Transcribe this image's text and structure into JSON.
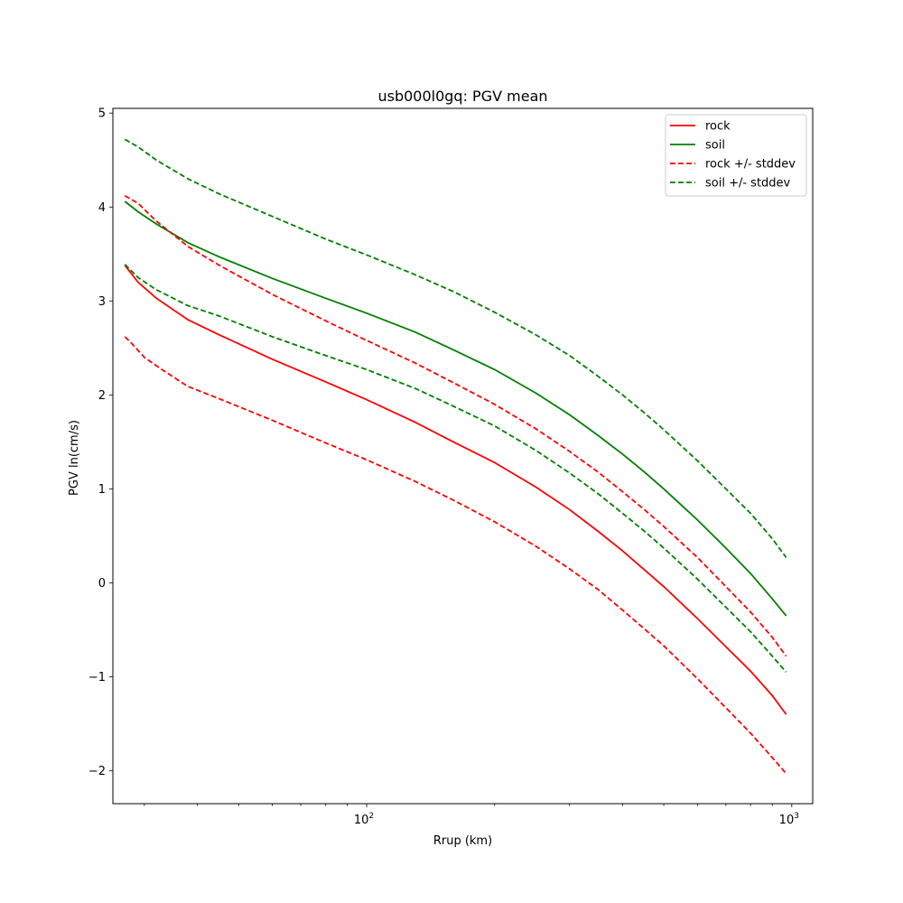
{
  "chart_data": {
    "type": "line",
    "title": "usb000l0gq: PGV mean",
    "xlabel": "Rrup (km)",
    "ylabel": "PGV ln(cm/s)",
    "xscale": "log",
    "xlim": [
      25.3,
      1120
    ],
    "ylim": [
      -2.35,
      5.05
    ],
    "xticks": [
      {
        "value": 100,
        "base": "10",
        "exp": "2"
      },
      {
        "value": 1000,
        "base": "10",
        "exp": "3"
      }
    ],
    "yticks": [
      {
        "value": -2,
        "label": "−2"
      },
      {
        "value": -1,
        "label": "−1"
      },
      {
        "value": 0,
        "label": "0"
      },
      {
        "value": 1,
        "label": "1"
      },
      {
        "value": 2,
        "label": "2"
      },
      {
        "value": 3,
        "label": "3"
      },
      {
        "value": 4,
        "label": "4"
      },
      {
        "value": 5,
        "label": "5"
      }
    ],
    "grid": false,
    "legend_position": "top-right",
    "series": [
      {
        "name": "rock",
        "color": "#ff0000",
        "dash": "solid",
        "x": [
          27,
          29,
          32,
          38,
          45,
          60,
          80,
          100,
          130,
          160,
          200,
          250,
          300,
          350,
          400,
          450,
          500,
          600,
          700,
          800,
          900,
          970
        ],
        "y": [
          3.38,
          3.2,
          3.03,
          2.8,
          2.64,
          2.38,
          2.14,
          1.95,
          1.71,
          1.5,
          1.28,
          1.02,
          0.78,
          0.55,
          0.34,
          0.14,
          -0.04,
          -0.38,
          -0.68,
          -0.94,
          -1.2,
          -1.4
        ]
      },
      {
        "name": "soil",
        "color": "#008000",
        "dash": "solid",
        "x": [
          27,
          29,
          32,
          38,
          45,
          60,
          80,
          100,
          130,
          160,
          200,
          250,
          300,
          350,
          400,
          450,
          500,
          600,
          700,
          800,
          900,
          970
        ],
        "y": [
          4.06,
          3.95,
          3.82,
          3.62,
          3.47,
          3.24,
          3.03,
          2.87,
          2.67,
          2.48,
          2.27,
          2.02,
          1.79,
          1.57,
          1.37,
          1.18,
          1.0,
          0.67,
          0.37,
          0.1,
          -0.17,
          -0.35
        ]
      },
      {
        "name": "rock +/- stddev",
        "color": "#ff0000",
        "dash": "dashed",
        "x": [
          27,
          29,
          32,
          38,
          45,
          60,
          80,
          100,
          130,
          160,
          200,
          250,
          300,
          350,
          400,
          450,
          500,
          600,
          700,
          800,
          900,
          970
        ],
        "y": [
          4.12,
          4.04,
          3.85,
          3.58,
          3.38,
          3.07,
          2.79,
          2.58,
          2.34,
          2.13,
          1.9,
          1.64,
          1.4,
          1.18,
          0.97,
          0.78,
          0.6,
          0.27,
          -0.04,
          -0.31,
          -0.58,
          -0.78
        ]
      },
      {
        "name": "rock +/- stddev",
        "color": "#ff0000",
        "dash": "dashed",
        "legend": false,
        "x": [
          27,
          28,
          30,
          33,
          38,
          45,
          60,
          80,
          100,
          130,
          160,
          200,
          250,
          300,
          350,
          400,
          450,
          500,
          600,
          700,
          800,
          900,
          970
        ],
        "y": [
          2.62,
          2.55,
          2.4,
          2.27,
          2.09,
          1.96,
          1.73,
          1.49,
          1.31,
          1.08,
          0.88,
          0.65,
          0.39,
          0.15,
          -0.07,
          -0.29,
          -0.49,
          -0.67,
          -1.02,
          -1.33,
          -1.6,
          -1.86,
          -2.03
        ]
      },
      {
        "name": "soil +/- stddev",
        "color": "#008000",
        "dash": "dashed",
        "x": [
          27,
          29,
          32,
          38,
          45,
          60,
          80,
          100,
          130,
          160,
          200,
          250,
          300,
          350,
          400,
          450,
          500,
          600,
          700,
          800,
          900,
          970
        ],
        "y": [
          4.72,
          4.64,
          4.5,
          4.3,
          4.14,
          3.9,
          3.66,
          3.49,
          3.28,
          3.1,
          2.88,
          2.64,
          2.42,
          2.2,
          2.0,
          1.81,
          1.63,
          1.3,
          1.0,
          0.74,
          0.47,
          0.27
        ]
      },
      {
        "name": "soil +/- stddev",
        "color": "#008000",
        "dash": "dashed",
        "legend": false,
        "x": [
          27,
          29,
          32,
          38,
          45,
          60,
          80,
          100,
          130,
          160,
          200,
          250,
          300,
          350,
          400,
          450,
          500,
          600,
          700,
          800,
          900,
          970
        ],
        "y": [
          3.39,
          3.25,
          3.12,
          2.95,
          2.84,
          2.62,
          2.42,
          2.27,
          2.07,
          1.88,
          1.67,
          1.41,
          1.17,
          0.95,
          0.74,
          0.55,
          0.37,
          0.04,
          -0.26,
          -0.52,
          -0.78,
          -0.95
        ]
      }
    ]
  }
}
